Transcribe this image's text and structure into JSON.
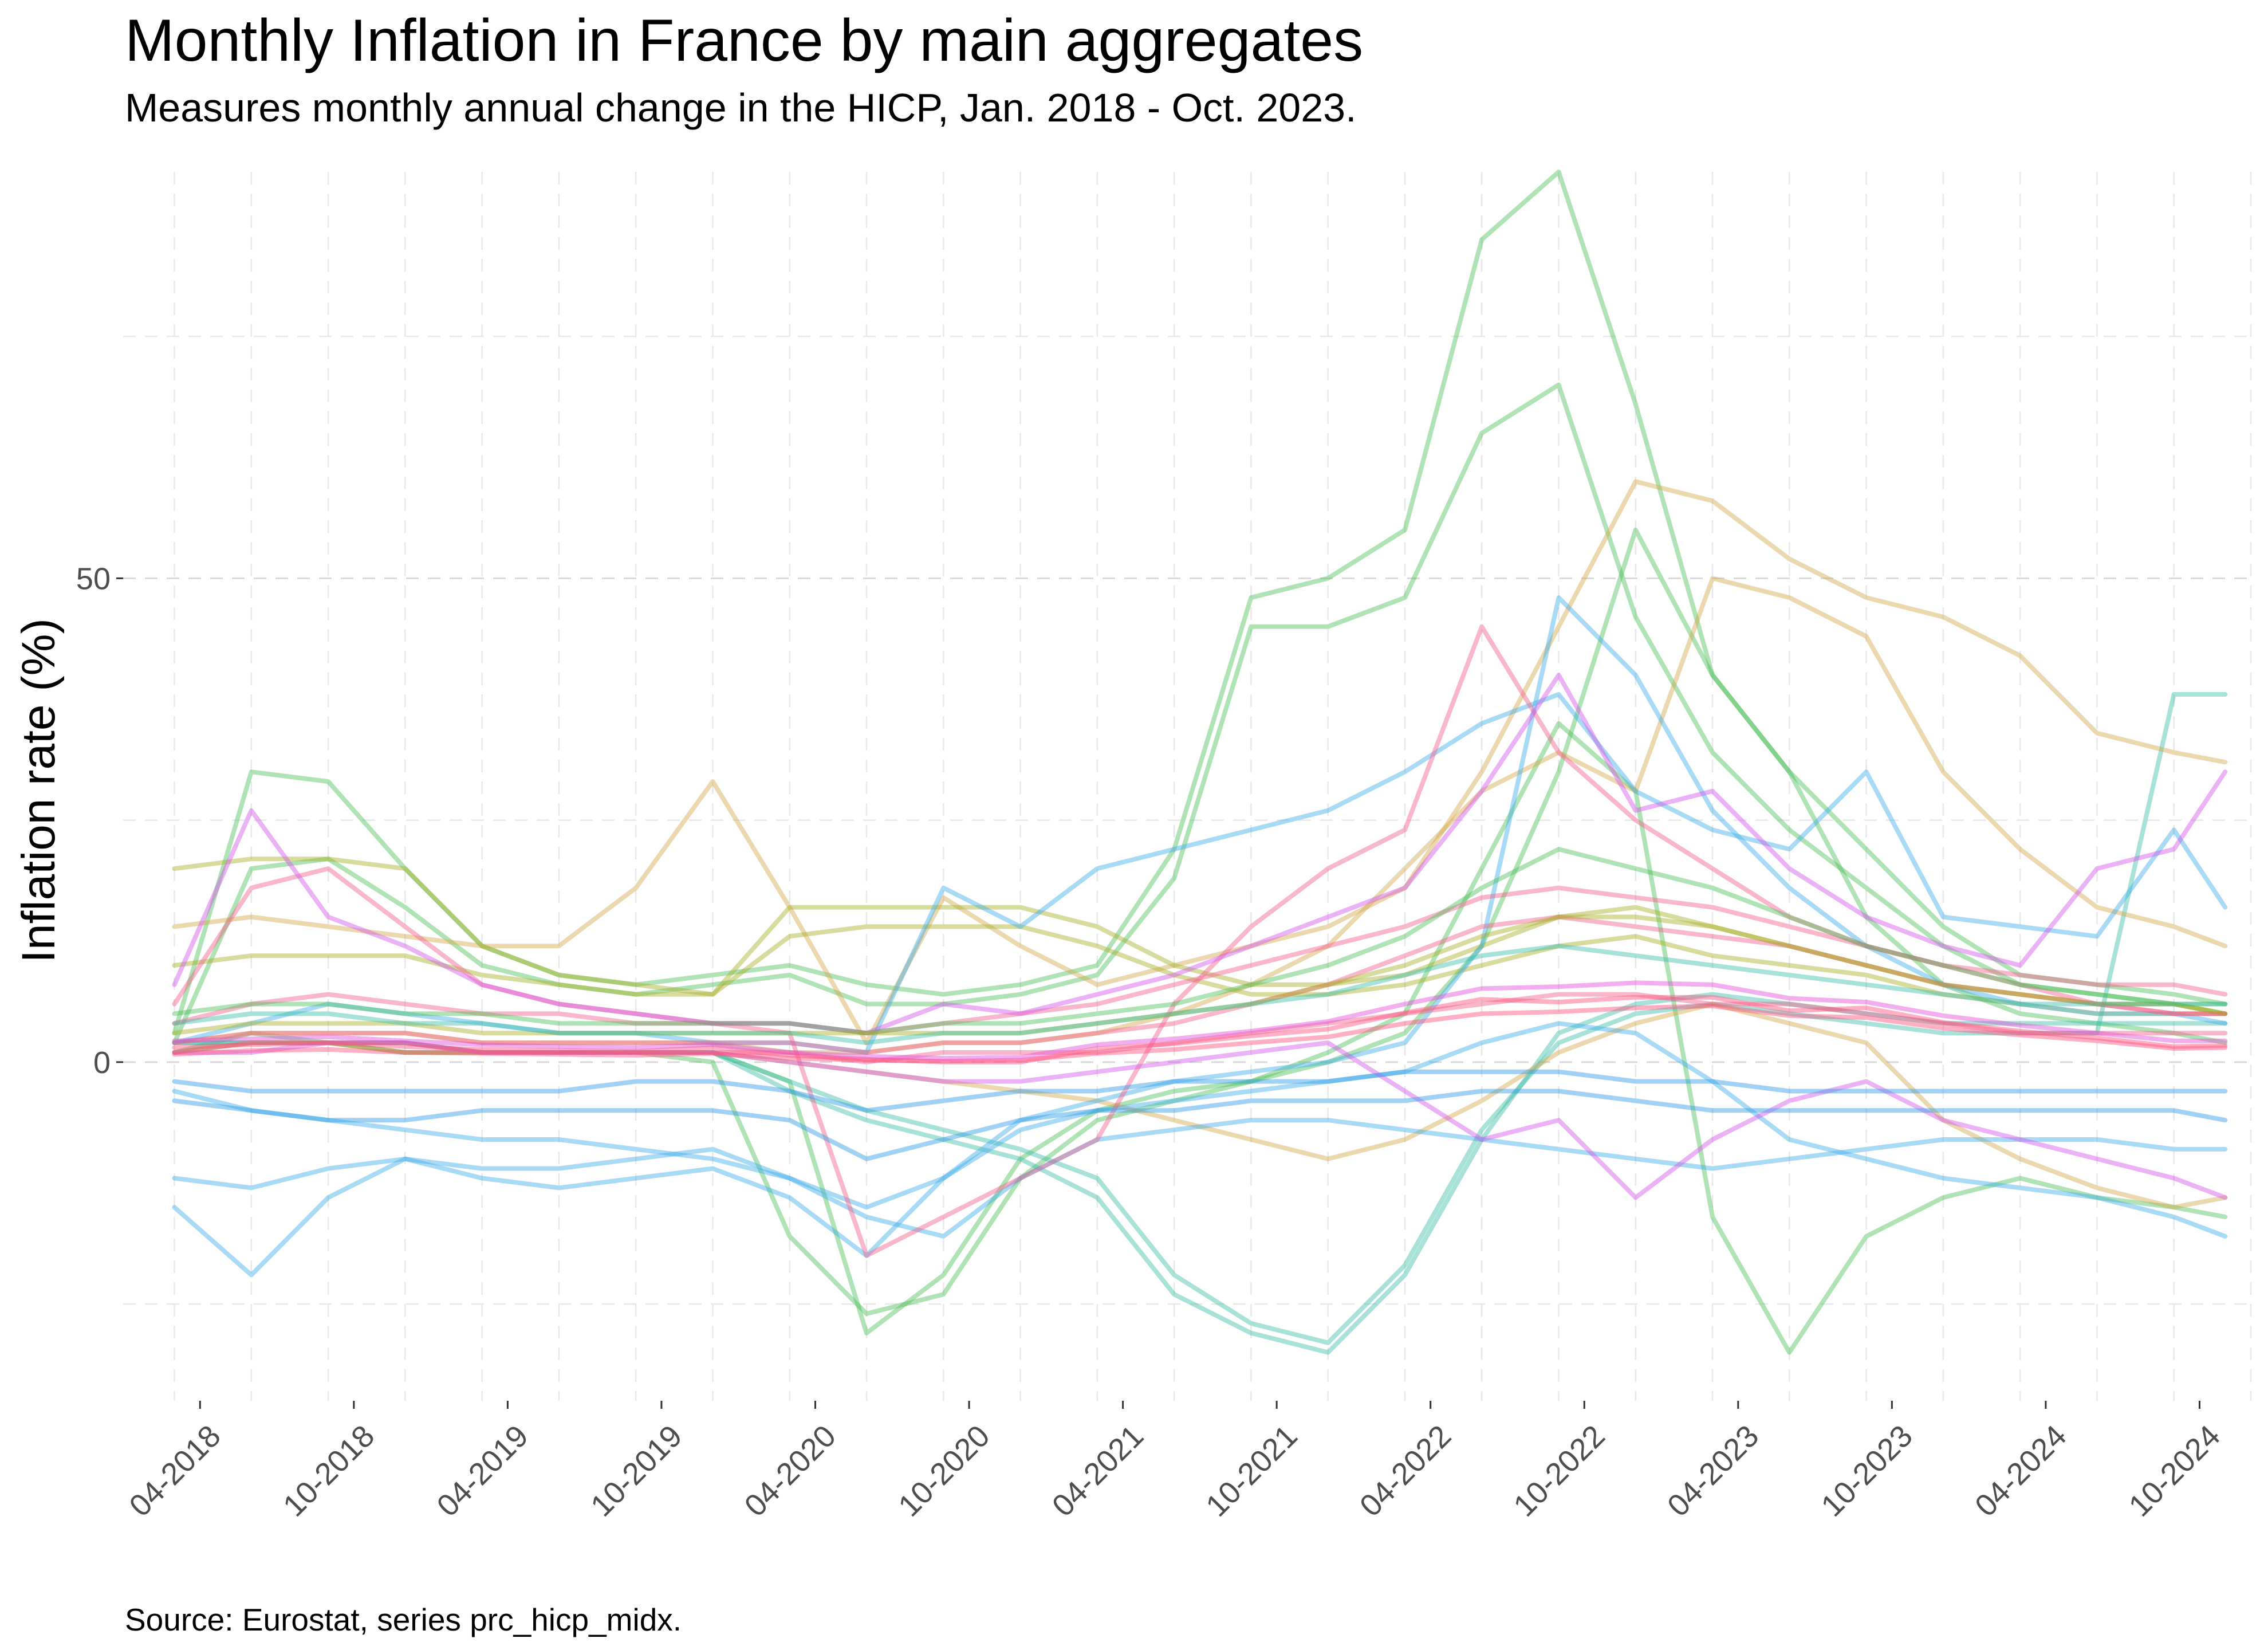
{
  "chart_data": {
    "type": "line",
    "title": "Monthly Inflation in France by main aggregates",
    "subtitle": "Measures monthly annual change in the HICP, Jan. 2018 - Oct. 2023.",
    "xlabel": "",
    "ylabel": "Inflation rate (%)",
    "caption": "Source: Eurostat, series prc_hicp_midx.",
    "x_ticks": [
      "04-2018",
      "10-2018",
      "04-2019",
      "10-2019",
      "04-2020",
      "10-2020",
      "04-2021",
      "10-2021",
      "04-2022",
      "10-2022",
      "04-2023",
      "10-2023",
      "04-2024",
      "10-2024"
    ],
    "y_ticks": [
      "0",
      "50"
    ],
    "y_tick_values": [
      0,
      50
    ],
    "xlim": [
      "2018-01",
      "2024-12"
    ],
    "ylim": [
      -35,
      92
    ],
    "grid": true,
    "grid_style": "dashed",
    "legend": "none",
    "line_alpha": 0.45,
    "x_months": [
      "2018-03",
      "2018-06",
      "2018-09",
      "2018-12",
      "2019-03",
      "2019-06",
      "2019-09",
      "2019-12",
      "2020-03",
      "2020-06",
      "2020-09",
      "2020-12",
      "2021-03",
      "2021-06",
      "2021-09",
      "2021-12",
      "2022-03",
      "2022-06",
      "2022-09",
      "2022-12",
      "2023-03",
      "2023-06",
      "2023-09",
      "2023-12",
      "2024-03",
      "2024-06",
      "2024-09",
      "2024-11"
    ],
    "series": [
      {
        "color": "#4dbe5a",
        "values": [
          3,
          30,
          29,
          20,
          12,
          9,
          8,
          9,
          10,
          8,
          7,
          8,
          10,
          22,
          48,
          50,
          55,
          85,
          92,
          68,
          40,
          30,
          22,
          14,
          9,
          8,
          7,
          6
        ]
      },
      {
        "color": "#4dbe5a",
        "values": [
          2,
          20,
          21,
          16,
          10,
          8,
          7,
          8,
          9,
          6,
          6,
          7,
          9,
          19,
          45,
          45,
          48,
          65,
          70,
          46,
          32,
          24,
          18,
          12,
          8,
          7,
          6,
          5
        ]
      },
      {
        "color": "#4dbe5a",
        "values": [
          1,
          2,
          2,
          1,
          1,
          1,
          1,
          1,
          -2,
          -28,
          -22,
          -10,
          -5,
          -3,
          -2,
          0,
          3,
          12,
          30,
          55,
          40,
          30,
          15,
          8,
          5,
          4,
          3,
          2
        ]
      },
      {
        "color": "#4dbe5a",
        "values": [
          1,
          3,
          2,
          1,
          1,
          1,
          1,
          0,
          -18,
          -26,
          -24,
          -12,
          -6,
          -4,
          -2,
          1,
          5,
          20,
          35,
          28,
          -16,
          -30,
          -18,
          -14,
          -12,
          -14,
          -15,
          -16
        ]
      },
      {
        "color": "#3dbda8",
        "values": [
          2,
          2,
          2,
          2,
          1,
          1,
          1,
          1,
          -3,
          -6,
          -8,
          -10,
          -14,
          -24,
          -28,
          -30,
          -22,
          -8,
          3,
          6,
          7,
          6,
          5,
          4,
          4,
          4,
          4,
          4
        ]
      },
      {
        "color": "#3dbda8",
        "values": [
          2,
          2,
          2,
          2,
          1,
          1,
          1,
          1,
          -2,
          -5,
          -7,
          -9,
          -12,
          -22,
          -27,
          -29,
          -21,
          -7,
          2,
          5,
          6,
          5,
          4,
          3,
          3,
          3,
          38,
          38
        ]
      },
      {
        "color": "#d4a84e",
        "values": [
          14,
          15,
          14,
          13,
          12,
          12,
          18,
          29,
          16,
          2,
          17,
          12,
          8,
          10,
          12,
          14,
          18,
          30,
          45,
          60,
          58,
          52,
          48,
          46,
          42,
          34,
          32,
          31
        ]
      },
      {
        "color": "#d4a84e",
        "values": [
          2,
          3,
          3,
          3,
          2,
          2,
          2,
          2,
          1,
          1,
          2,
          2,
          3,
          5,
          8,
          12,
          20,
          28,
          32,
          28,
          50,
          48,
          44,
          30,
          22,
          16,
          14,
          12
        ]
      },
      {
        "color": "#d4a84e",
        "values": [
          1,
          2,
          2,
          1,
          1,
          1,
          1,
          1,
          0,
          -1,
          -2,
          -3,
          -4,
          -6,
          -8,
          -10,
          -8,
          -4,
          1,
          4,
          6,
          4,
          2,
          -6,
          -10,
          -13,
          -15,
          -14
        ]
      },
      {
        "color": "#a8b029",
        "values": [
          20,
          21,
          21,
          20,
          12,
          9,
          8,
          7,
          16,
          16,
          16,
          16,
          14,
          10,
          8,
          8,
          9,
          12,
          15,
          16,
          14,
          12,
          10,
          8,
          7,
          6,
          6,
          5
        ]
      },
      {
        "color": "#a8b029",
        "values": [
          10,
          11,
          11,
          11,
          9,
          8,
          7,
          7,
          13,
          14,
          14,
          14,
          12,
          9,
          7,
          7,
          8,
          10,
          12,
          13,
          11,
          10,
          9,
          7,
          6,
          5,
          5,
          5
        ]
      },
      {
        "color": "#3daee9",
        "values": [
          -15,
          -22,
          -14,
          -10,
          -12,
          -13,
          -12,
          -11,
          -14,
          -20,
          -12,
          -6,
          -4,
          -2,
          -1,
          0,
          2,
          12,
          48,
          40,
          26,
          18,
          12,
          8,
          6,
          5,
          5,
          4
        ]
      },
      {
        "color": "#3daee9",
        "values": [
          -12,
          -13,
          -11,
          -10,
          -11,
          -11,
          -10,
          -9,
          -12,
          -15,
          -12,
          -7,
          -5,
          -4,
          -3,
          -2,
          -1,
          2,
          4,
          3,
          -2,
          -8,
          -10,
          -12,
          -13,
          -14,
          -16,
          -18
        ]
      },
      {
        "color": "#3daee9",
        "values": [
          2,
          4,
          6,
          5,
          4,
          3,
          3,
          2,
          2,
          1,
          18,
          14,
          20,
          22,
          24,
          26,
          30,
          35,
          38,
          28,
          24,
          22,
          30,
          15,
          14,
          13,
          24,
          16
        ]
      },
      {
        "color": "#3daee9",
        "values": [
          -3,
          -5,
          -6,
          -7,
          -8,
          -8,
          -9,
          -10,
          -12,
          -16,
          -18,
          -12,
          -8,
          -7,
          -6,
          -6,
          -7,
          -8,
          -9,
          -10,
          -11,
          -10,
          -9,
          -8,
          -8,
          -8,
          -9,
          -9
        ]
      },
      {
        "color": "#f25f8b",
        "values": [
          6,
          18,
          20,
          14,
          8,
          6,
          5,
          4,
          3,
          -20,
          -16,
          -12,
          -8,
          6,
          14,
          20,
          24,
          45,
          32,
          25,
          20,
          15,
          12,
          10,
          8,
          6,
          5,
          5
        ]
      },
      {
        "color": "#f25f8b",
        "values": [
          4,
          6,
          7,
          6,
          5,
          5,
          4,
          4,
          4,
          3,
          4,
          5,
          6,
          8,
          10,
          12,
          14,
          17,
          18,
          17,
          16,
          14,
          12,
          10,
          9,
          8,
          8,
          7
        ]
      },
      {
        "color": "#f25f8b",
        "values": [
          2,
          3,
          3,
          3,
          2,
          2,
          2,
          2,
          2,
          1,
          2,
          2,
          3,
          4,
          6,
          8,
          11,
          14,
          15,
          14,
          13,
          12,
          10,
          8,
          7,
          6,
          5,
          5
        ]
      },
      {
        "color": "#d257e8",
        "values": [
          8,
          26,
          15,
          12,
          8,
          6,
          5,
          4,
          4,
          3,
          6,
          5,
          7,
          9,
          12,
          15,
          18,
          28,
          40,
          26,
          28,
          20,
          15,
          12,
          10,
          20,
          22,
          30
        ]
      },
      {
        "color": "#d257e8",
        "values": [
          1,
          1,
          2,
          2,
          1,
          1,
          1,
          1,
          0,
          -1,
          -2,
          -2,
          -1,
          0,
          1,
          2,
          -3,
          -8,
          -6,
          -14,
          -8,
          -4,
          -2,
          -6,
          -8,
          -10,
          -12,
          -14
        ]
      },
      {
        "color": "#2e9be6",
        "values": [
          -4,
          -5,
          -6,
          -6,
          -5,
          -5,
          -5,
          -5,
          -6,
          -10,
          -8,
          -6,
          -5,
          -5,
          -4,
          -4,
          -4,
          -3,
          -3,
          -4,
          -5,
          -5,
          -5,
          -5,
          -5,
          -5,
          -5,
          -6
        ]
      },
      {
        "color": "#2e9be6",
        "values": [
          -2,
          -3,
          -3,
          -3,
          -3,
          -3,
          -2,
          -2,
          -3,
          -5,
          -4,
          -3,
          -3,
          -2,
          -2,
          -2,
          -1,
          -1,
          -1,
          -2,
          -2,
          -3,
          -3,
          -3,
          -3,
          -3,
          -3,
          -3
        ]
      },
      {
        "color": "#4dbe5a",
        "values": [
          5,
          6,
          6,
          5,
          5,
          4,
          4,
          4,
          4,
          3,
          4,
          4,
          5,
          6,
          8,
          10,
          13,
          18,
          22,
          20,
          18,
          15,
          12,
          10,
          8,
          7,
          6,
          6
        ]
      },
      {
        "color": "#a8b029",
        "values": [
          3,
          4,
          4,
          4,
          3,
          3,
          3,
          3,
          3,
          3,
          3,
          3,
          4,
          5,
          6,
          8,
          10,
          13,
          15,
          15,
          14,
          12,
          10,
          8,
          7,
          6,
          6,
          5
        ]
      },
      {
        "color": "#3dbda8",
        "values": [
          4,
          5,
          5,
          4,
          4,
          3,
          3,
          3,
          3,
          2,
          3,
          3,
          4,
          5,
          6,
          7,
          9,
          11,
          12,
          11,
          10,
          9,
          8,
          7,
          6,
          6,
          6,
          6
        ]
      },
      {
        "color": "#f25f8b",
        "values": [
          1,
          2,
          2,
          2,
          1,
          1,
          1,
          1,
          1,
          0,
          1,
          1,
          1,
          2,
          3,
          4,
          5,
          6,
          7,
          7,
          6,
          6,
          5,
          4,
          3,
          3,
          3,
          3
        ]
      },
      {
        "color": "#ff4f7f",
        "values": [
          1.5,
          1.8,
          2.0,
          1.6,
          1.3,
          1.2,
          1.1,
          1.5,
          0.7,
          0.3,
          0.0,
          0.0,
          1.4,
          1.9,
          2.7,
          3.4,
          5.1,
          6.5,
          6.2,
          6.7,
          6.7,
          5.3,
          5.6,
          4.1,
          3.2,
          2.5,
          1.6,
          1.7
        ]
      },
      {
        "color": "#ff4f7f",
        "values": [
          0.8,
          1.2,
          1.3,
          1.0,
          0.9,
          0.8,
          0.7,
          0.9,
          0.4,
          0.2,
          0.1,
          0.2,
          0.9,
          1.3,
          2.0,
          2.6,
          4.0,
          5.0,
          5.2,
          5.6,
          5.8,
          4.8,
          4.6,
          3.5,
          2.8,
          2.2,
          1.4,
          1.5
        ]
      },
      {
        "color": "#e04fd8",
        "values": [
          2.2,
          2.4,
          2.6,
          2.2,
          1.8,
          1.6,
          1.5,
          1.8,
          1.0,
          0.6,
          0.4,
          0.5,
          1.8,
          2.4,
          3.2,
          4.2,
          6.0,
          7.6,
          7.8,
          8.2,
          8.0,
          6.6,
          6.2,
          4.8,
          3.8,
          3.0,
          2.2,
          2.2
        ]
      }
    ]
  }
}
